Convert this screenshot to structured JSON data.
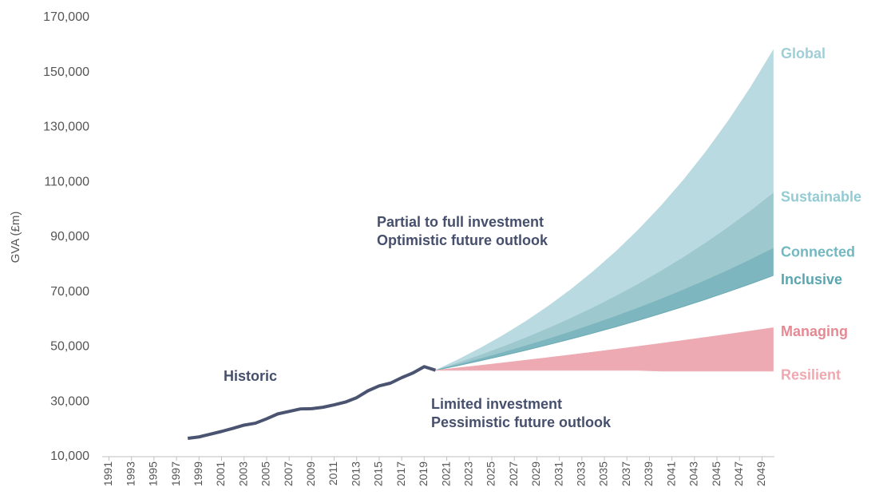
{
  "chart_data": {
    "type": "area",
    "y_label": "GVA (£m)",
    "xlim": [
      1990.4,
      2050.1
    ],
    "xticks": [
      1991,
      1993,
      1995,
      1997,
      1999,
      2001,
      2003,
      2005,
      2007,
      2009,
      2011,
      2013,
      2015,
      2017,
      2019,
      2021,
      2023,
      2025,
      2027,
      2029,
      2031,
      2033,
      2035,
      2037,
      2039,
      2041,
      2043,
      2045,
      2047,
      2049
    ],
    "ylim": [
      10000,
      170000
    ],
    "yticks": [
      {
        "value": 10000,
        "label": "10,000"
      },
      {
        "value": 30000,
        "label": "30,000"
      },
      {
        "value": 50000,
        "label": "50,000"
      },
      {
        "value": 70000,
        "label": "70,000"
      },
      {
        "value": 90000,
        "label": "90,000"
      },
      {
        "value": 110000,
        "label": "110,000"
      },
      {
        "value": 130000,
        "label": "130,000"
      },
      {
        "value": 150000,
        "label": "150,000"
      },
      {
        "value": 170000,
        "label": "170,000"
      }
    ],
    "historic": {
      "name": "Historic",
      "color": "#4a5470",
      "x": [
        1998,
        1999,
        2000,
        2001,
        2002,
        2003,
        2004,
        2005,
        2006,
        2007,
        2008,
        2009,
        2010,
        2011,
        2012,
        2013,
        2014,
        2015,
        2016,
        2017,
        2018,
        2019,
        2020
      ],
      "values": [
        16700,
        17200,
        18200,
        19200,
        20300,
        21500,
        22200,
        23800,
        25600,
        26500,
        27400,
        27500,
        28000,
        28900,
        29900,
        31500,
        34000,
        35800,
        36800,
        38800,
        40500,
        42800,
        41500
      ]
    },
    "scenario_x": [
      2020,
      2022,
      2024,
      2026,
      2028,
      2030,
      2032,
      2034,
      2036,
      2038,
      2040,
      2042,
      2044,
      2046,
      2048,
      2050
    ],
    "scenario_groups": [
      {
        "label": [
          "Partial to full investment",
          "Optimistic future outlook"
        ],
        "series": [
          {
            "name": "Global",
            "color": "#b9dae0",
            "label_color": "#9fcfd6",
            "values": [
              41500,
              45370,
              49610,
              54240,
              59300,
              64840,
              70890,
              77510,
              84740,
              92650,
              101300,
              110760,
              121100,
              132400,
              144760,
              158270
            ]
          },
          {
            "name": "Sustainable",
            "color": "#9dc8ce",
            "label_color": "#93cbd2",
            "values": [
              41500,
              44180,
              47030,
              50070,
              53300,
              56740,
              60400,
              64300,
              68450,
              72870,
              77580,
              82580,
              87910,
              93590,
              99630,
              106060
            ]
          },
          {
            "name": "Connected",
            "color": "#7db6bf",
            "label_color": "#72b8c1",
            "values": [
              41500,
              43560,
              45730,
              48000,
              50390,
              52890,
              55520,
              58280,
              61180,
              64220,
              67420,
              70770,
              74290,
              77980,
              81860,
              85930
            ]
          },
          {
            "name": "Inclusive",
            "color": "#6aaab4",
            "label_color": "#5aa5b0",
            "values": [
              41500,
              43210,
              44990,
              46840,
              48770,
              50780,
              52870,
              55050,
              57310,
              59670,
              62130,
              64690,
              67350,
              70130,
              73010,
              76020
            ]
          }
        ]
      },
      {
        "label": [
          "Limited investment",
          "Pessimistic future outlook"
        ],
        "series": [
          {
            "name": "Managing",
            "color": "#edaab2",
            "label_color": "#e58993",
            "values": [
              41500,
              42390,
              43290,
              44220,
              45170,
              46130,
              47120,
              48130,
              49160,
              50220,
              51290,
              52390,
              53510,
              54660,
              55830,
              57030
            ]
          },
          {
            "name": "Resilient",
            "color": "#eeb3ba",
            "label_color": "#f0a8b0",
            "values": [
              41500,
              41500,
              41500,
              41500,
              41500,
              41500,
              41500,
              41500,
              41500,
              41500,
              41200,
              41200,
              41200,
              41200,
              41200,
              41200
            ]
          }
        ]
      }
    ]
  }
}
